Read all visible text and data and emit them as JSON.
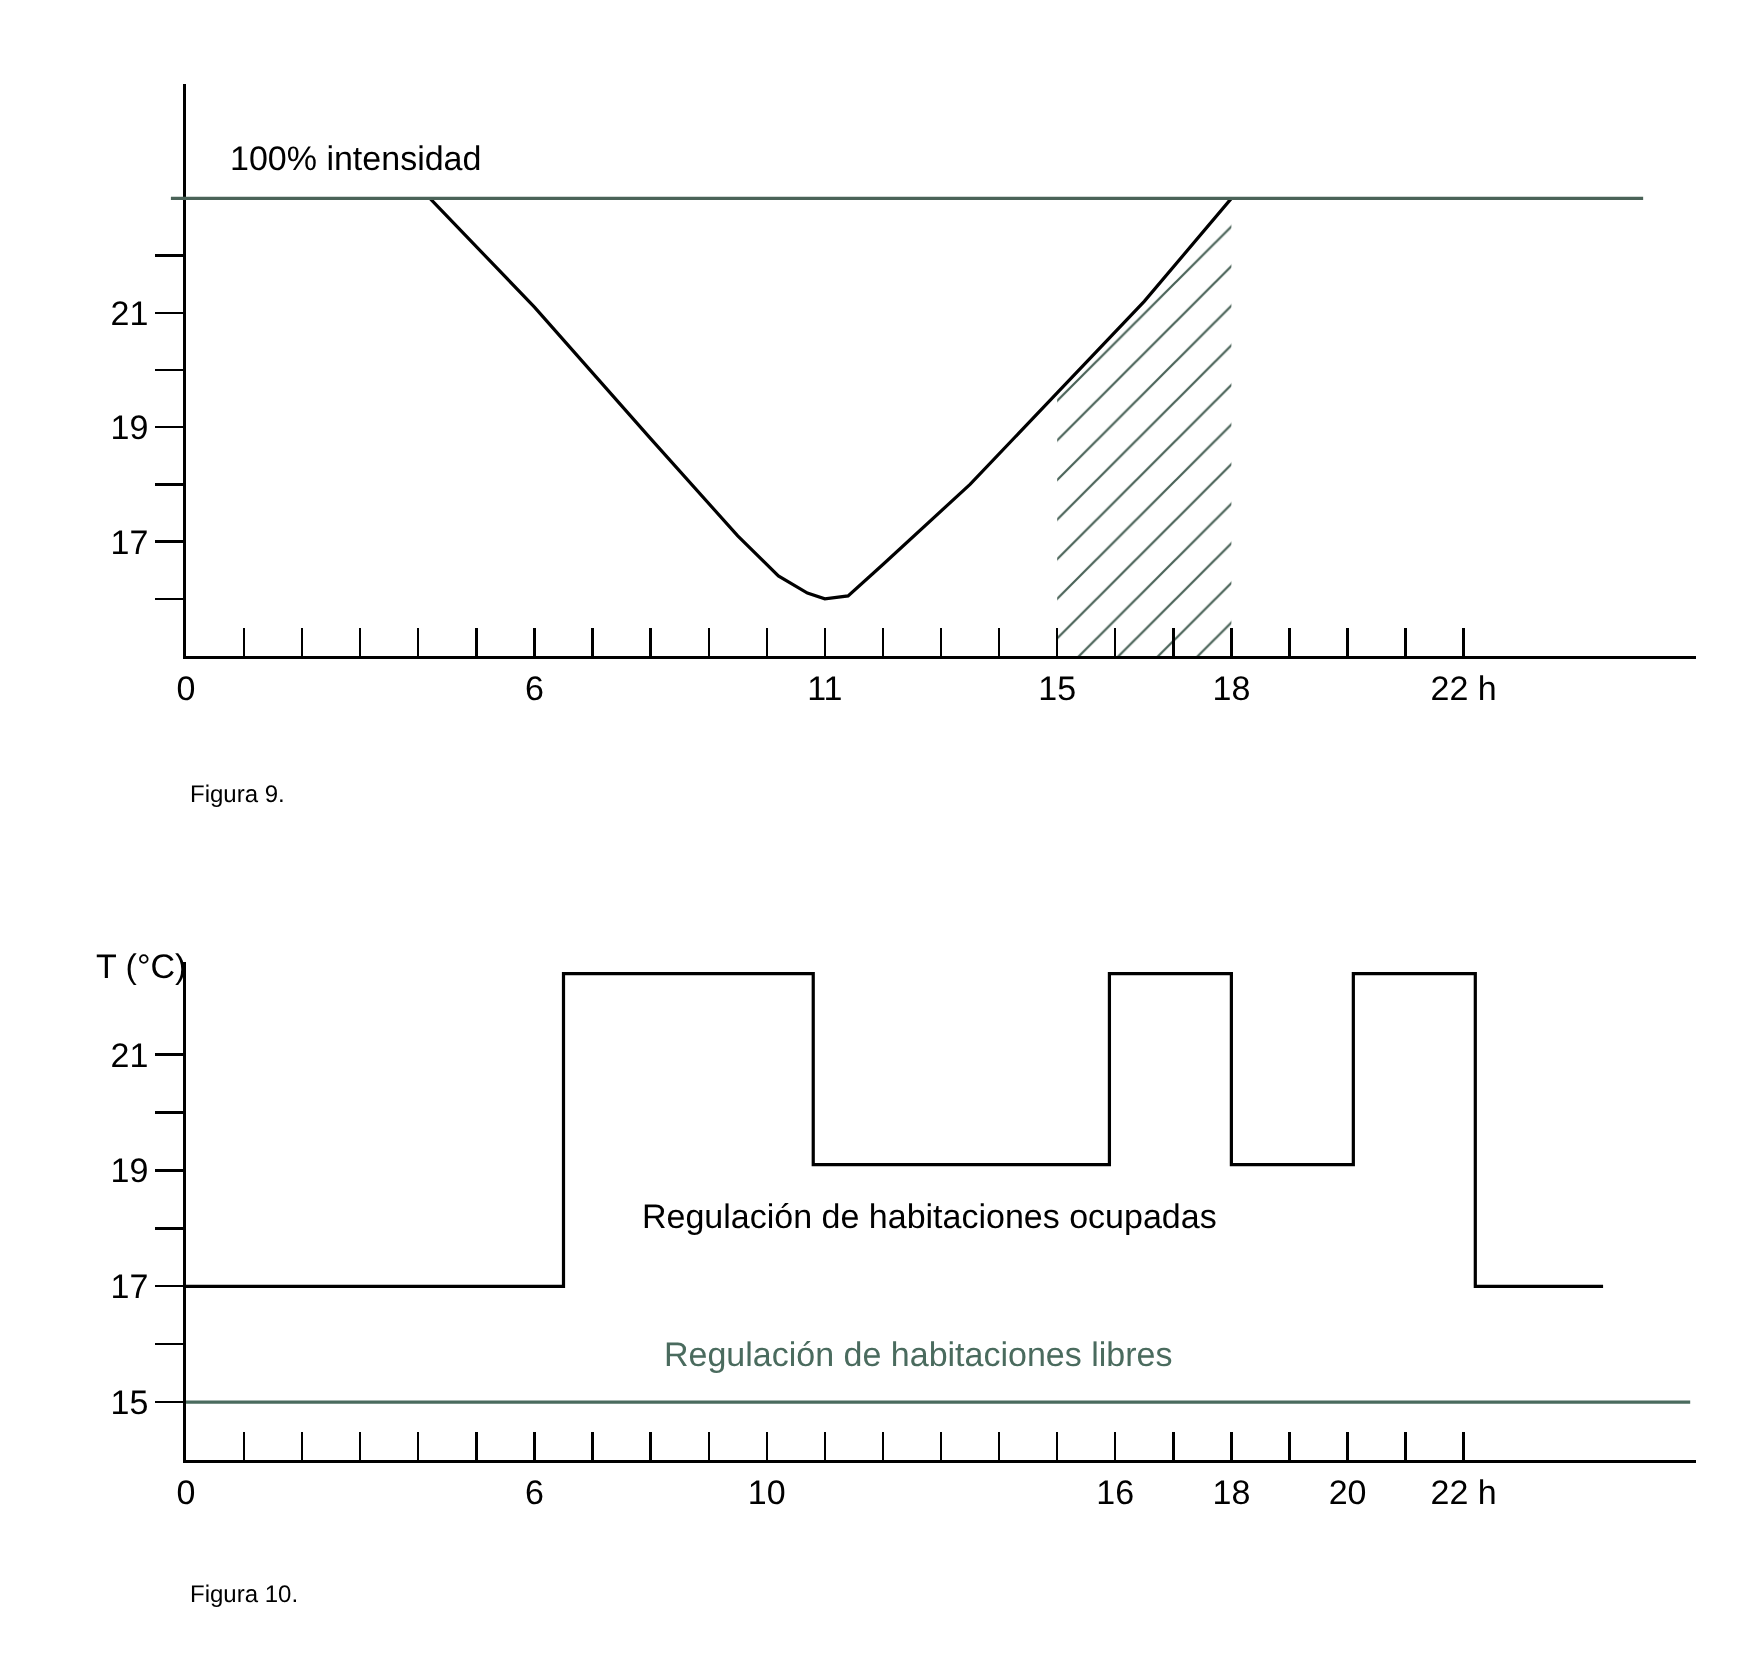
{
  "chart_data": [
    {
      "type": "line",
      "xlim": [
        0,
        26
      ],
      "ylim": [
        15,
        25
      ],
      "xticks": [
        {
          "value": 0,
          "label": "0"
        },
        {
          "value": 1,
          "label": null
        },
        {
          "value": 2,
          "label": null
        },
        {
          "value": 3,
          "label": null
        },
        {
          "value": 4,
          "label": null
        },
        {
          "value": 5,
          "label": null
        },
        {
          "value": 6,
          "label": "6"
        },
        {
          "value": 7,
          "label": null
        },
        {
          "value": 8,
          "label": null
        },
        {
          "value": 9,
          "label": null
        },
        {
          "value": 10,
          "label": null
        },
        {
          "value": 11,
          "label": "11"
        },
        {
          "value": 12,
          "label": null
        },
        {
          "value": 13,
          "label": null
        },
        {
          "value": 14,
          "label": null
        },
        {
          "value": 15,
          "label": "15"
        },
        {
          "value": 16,
          "label": null
        },
        {
          "value": 17,
          "label": null
        },
        {
          "value": 18,
          "label": "18"
        },
        {
          "value": 19,
          "label": null
        },
        {
          "value": 20,
          "label": null
        },
        {
          "value": 21,
          "label": null
        },
        {
          "value": 22,
          "label": "22 h"
        }
      ],
      "yticks": [
        {
          "value": 16,
          "label": null
        },
        17,
        {
          "value": 18,
          "label": null
        },
        19,
        {
          "value": 20,
          "label": null
        },
        21,
        {
          "value": 22,
          "label": null
        }
      ],
      "series": [
        {
          "type": "area",
          "color": "#4a6358",
          "x": [
            15,
            16.5,
            18
          ],
          "values": [
            19.6,
            21.2,
            23
          ]
        },
        {
          "color": "#000000",
          "x": [
            4.2,
            6,
            8,
            9.5,
            10.2,
            10.7,
            11,
            11.4,
            12,
            13.5,
            15,
            16.5,
            18
          ],
          "values": [
            23,
            21.1,
            18.8,
            17.1,
            16.4,
            16.1,
            16.0,
            16.05,
            16.6,
            18.0,
            19.6,
            21.2,
            23
          ]
        }
      ],
      "ref_lines": [
        {
          "axis": "y",
          "value": 23,
          "label": "100% intensidad",
          "color": "#4a6358"
        }
      ],
      "annotations": [
        "Figura 9."
      ],
      "grid": false,
      "legend": false,
      "marker": "none",
      "line_style": "solid"
    },
    {
      "type": "line",
      "ylabel": "T (°C)",
      "xlim": [
        0,
        26
      ],
      "ylim": [
        14,
        22.6
      ],
      "xticks": [
        {
          "value": 0,
          "label": "0"
        },
        {
          "value": 1,
          "label": null
        },
        {
          "value": 2,
          "label": null
        },
        {
          "value": 3,
          "label": null
        },
        {
          "value": 4,
          "label": null
        },
        {
          "value": 5,
          "label": null
        },
        {
          "value": 6,
          "label": "6"
        },
        {
          "value": 7,
          "label": null
        },
        {
          "value": 8,
          "label": null
        },
        {
          "value": 9,
          "label": null
        },
        {
          "value": 10,
          "label": "10"
        },
        {
          "value": 11,
          "label": null
        },
        {
          "value": 12,
          "label": null
        },
        {
          "value": 13,
          "label": null
        },
        {
          "value": 14,
          "label": null
        },
        {
          "value": 15,
          "label": null
        },
        {
          "value": 16,
          "label": "16"
        },
        {
          "value": 17,
          "label": null
        },
        {
          "value": 18,
          "label": "18"
        },
        {
          "value": 19,
          "label": null
        },
        {
          "value": 20,
          "label": "20"
        },
        {
          "value": 21,
          "label": null
        },
        {
          "value": 22,
          "label": "22 h"
        }
      ],
      "yticks": [
        15,
        {
          "value": 16,
          "label": null
        },
        17,
        {
          "value": 18,
          "label": null
        },
        19,
        {
          "value": 20,
          "label": null
        },
        21
      ],
      "series": [
        {
          "name": "Regulación de habitaciones ocupadas",
          "type": "step",
          "color": "#000000",
          "x": [
            0,
            6.5,
            10.8,
            15.9,
            18,
            20.1,
            22.2,
            24.4
          ],
          "values": [
            17,
            22.4,
            19.1,
            22.4,
            19.1,
            22.4,
            17,
            17
          ]
        },
        {
          "name": "Regulación de habitaciones libres",
          "type": "line",
          "color": "#4a6b5e",
          "x": [
            0,
            25.9
          ],
          "values": [
            15,
            15
          ]
        }
      ],
      "annotations": [
        "Figura 10."
      ],
      "grid": false,
      "legend": false,
      "marker": "none",
      "line_style": "solid"
    }
  ]
}
